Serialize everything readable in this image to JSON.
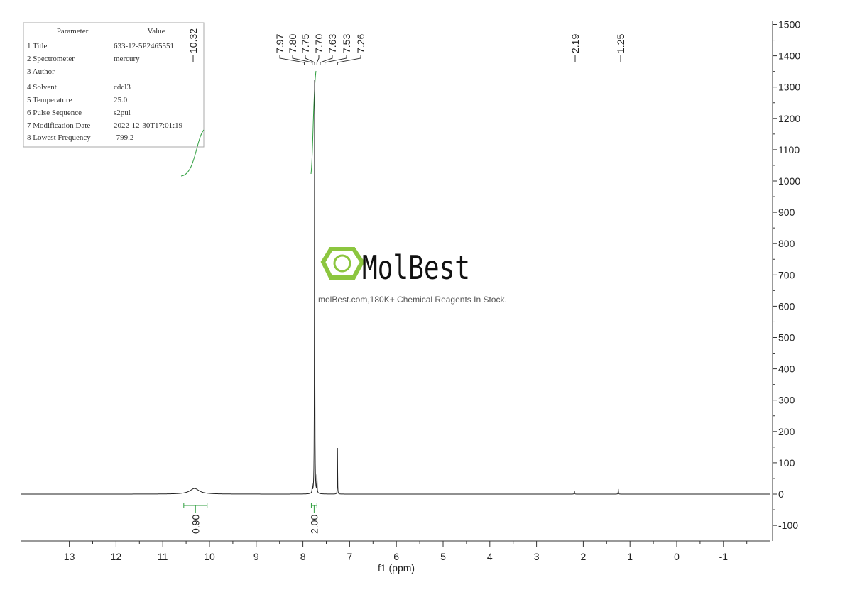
{
  "chart_data": {
    "type": "line",
    "title": "",
    "xlabel": "f1 (ppm)",
    "ylabel": "",
    "xlim": [
      14,
      -2
    ],
    "ylim": [
      -150,
      1500
    ],
    "x_ticks": [
      13,
      12,
      11,
      10,
      9,
      8,
      7,
      6,
      5,
      4,
      3,
      2,
      1,
      0,
      -1
    ],
    "y_ticks": [
      1500,
      1400,
      1300,
      1200,
      1100,
      1000,
      900,
      800,
      700,
      600,
      500,
      400,
      300,
      200,
      100,
      0,
      -100
    ],
    "peaks": [
      {
        "ppm": 10.32,
        "height": 18,
        "width": 0.12
      },
      {
        "ppm": 7.75,
        "height": 1370,
        "width": 0.004
      },
      {
        "ppm": 7.7,
        "height": 60,
        "width": 0.004
      },
      {
        "ppm": 7.8,
        "height": 25,
        "width": 0.004
      },
      {
        "ppm": 7.26,
        "height": 154,
        "width": 0.003
      },
      {
        "ppm": 2.19,
        "height": 12,
        "width": 0.004
      },
      {
        "ppm": 1.25,
        "height": 16,
        "width": 0.004
      }
    ],
    "peak_labels": [
      "10.32",
      "7.97",
      "7.80",
      "7.75",
      "7.70",
      "7.63",
      "7.53",
      "7.26",
      "2.19",
      "1.25"
    ],
    "integrals": [
      {
        "from": 10.55,
        "to": 10.05,
        "label": "0.90"
      },
      {
        "from": 7.82,
        "to": 7.7,
        "label": "2.00"
      }
    ],
    "colors": {
      "spectrum": "#222222",
      "integral": "#2e9e3e"
    }
  },
  "parameters": {
    "header": [
      "Parameter",
      "Value"
    ],
    "rows": [
      [
        "1 Title",
        "633-12-5P2465551"
      ],
      [
        "2 Spectrometer",
        "mercury"
      ],
      [
        "3 Author",
        ""
      ],
      [
        "4 Solvent",
        "cdcl3"
      ],
      [
        "5 Temperature",
        "25.0"
      ],
      [
        "6 Pulse Sequence",
        "s2pul"
      ],
      [
        "7 Modification Date",
        "2022-12-30T17:01:19"
      ],
      [
        "8 Lowest Frequency",
        "-799.2"
      ]
    ]
  },
  "watermark": {
    "logo": "MolBest",
    "tagline": "molBest.com,180K+ Chemical Reagents In Stock.",
    "color": "#8cc63f"
  }
}
